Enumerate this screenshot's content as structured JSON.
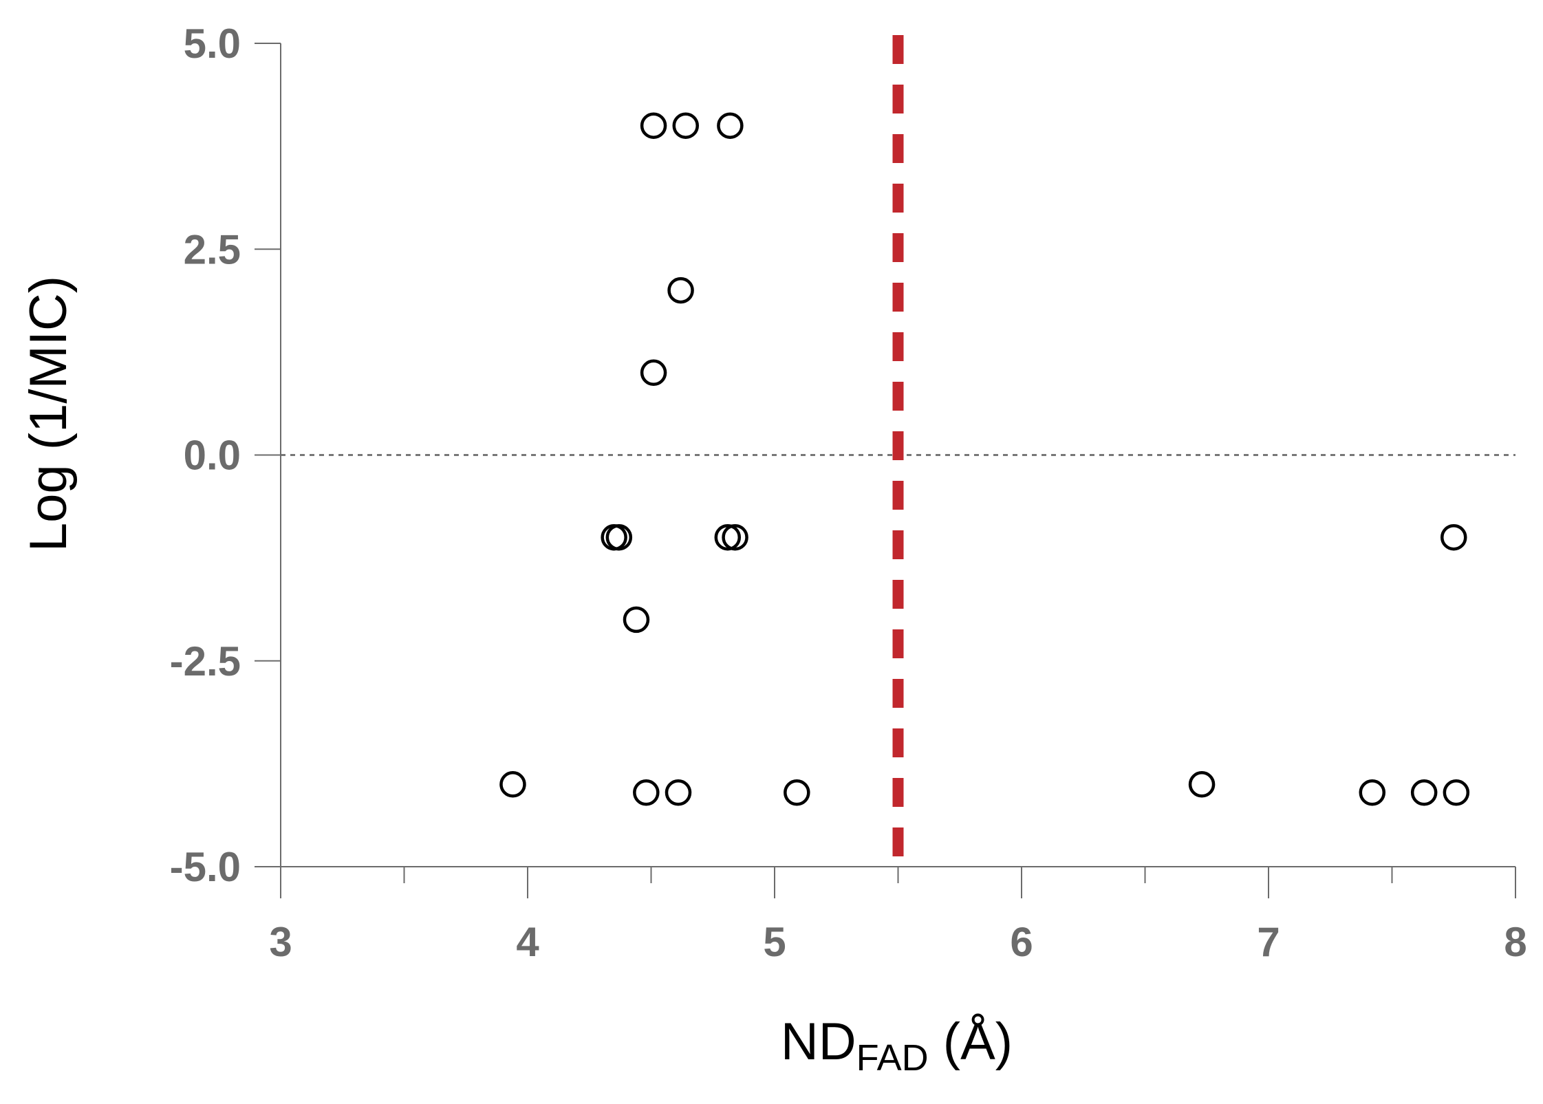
{
  "chart_data": {
    "type": "scatter",
    "title": "",
    "xlabel_main": "ND",
    "xlabel_sub": "FAD",
    "xlabel_unit": " (Å)",
    "ylabel": "Log (1/MIC)",
    "xlim": [
      3,
      8
    ],
    "ylim": [
      -5,
      5
    ],
    "x_ticks": [
      "3",
      "4",
      "5",
      "6",
      "7",
      "8"
    ],
    "y_ticks": [
      "5.0",
      "2.5",
      "0.0",
      "-2.5",
      "-5.0"
    ],
    "x_tick_values": [
      3,
      4,
      5,
      6,
      7,
      8
    ],
    "x_minor_tick_values": [
      3.5,
      4.5,
      5.5,
      6.5,
      7.5
    ],
    "y_tick_values": [
      5,
      2.5,
      0,
      -2.5,
      -5
    ],
    "grid": false,
    "legend": "none",
    "marker": "open-circle",
    "reference_lines": [
      {
        "orientation": "horizontal",
        "value": 0,
        "style": "dotted",
        "color": "#777777"
      },
      {
        "orientation": "vertical",
        "value": 5.5,
        "style": "dashed",
        "color": "#c1272d"
      }
    ],
    "series": [
      {
        "points": [
          {
            "x": 4.51,
            "y": 4.0
          },
          {
            "x": 4.64,
            "y": 4.0
          },
          {
            "x": 4.82,
            "y": 4.0
          },
          {
            "x": 4.62,
            "y": 2.0
          },
          {
            "x": 4.51,
            "y": 1.0
          },
          {
            "x": 4.35,
            "y": -1.0
          },
          {
            "x": 4.37,
            "y": -1.0
          },
          {
            "x": 4.81,
            "y": -1.0
          },
          {
            "x": 4.84,
            "y": -1.0
          },
          {
            "x": 7.75,
            "y": -1.0
          },
          {
            "x": 4.44,
            "y": -2.0
          },
          {
            "x": 3.94,
            "y": -4.0
          },
          {
            "x": 4.48,
            "y": -4.1
          },
          {
            "x": 4.61,
            "y": -4.1
          },
          {
            "x": 5.09,
            "y": -4.1
          },
          {
            "x": 6.73,
            "y": -4.0
          },
          {
            "x": 7.42,
            "y": -4.1
          },
          {
            "x": 7.63,
            "y": -4.1
          },
          {
            "x": 7.76,
            "y": -4.1
          }
        ]
      }
    ]
  }
}
